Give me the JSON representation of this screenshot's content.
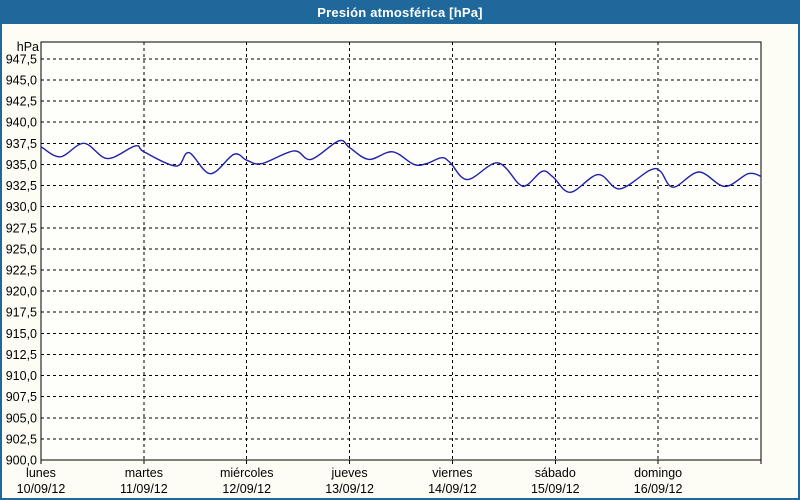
{
  "window": {
    "title": "Presión atmosférica [hPa]"
  },
  "colors": {
    "titlebar_bg": "#1e689c",
    "panel_border": "#1e689c",
    "panel_bg": "#fdfdf6",
    "plot_bg": "#fefefb",
    "grid": "#000000",
    "axis": "#000000",
    "line": "#2121a8",
    "title_text": "#ffffff"
  },
  "chart_data": {
    "type": "line",
    "title": "Presión atmosférica [hPa]",
    "y_unit": "hPa",
    "ylabel": "hPa",
    "xlabel": "",
    "ylim": [
      900.0,
      949.5
    ],
    "y_tick_step": 2.5,
    "grid": "dashed",
    "legend_position": "none",
    "y_tick_labels": [
      "947,5",
      "945,0",
      "942,5",
      "940,0",
      "937,5",
      "935,0",
      "932,5",
      "930,0",
      "927,5",
      "925,0",
      "922,5",
      "920,0",
      "917,5",
      "915,0",
      "912,5",
      "910,0",
      "907,5",
      "905,0",
      "902,5",
      "900,0"
    ],
    "y_tick_values": [
      947.5,
      945.0,
      942.5,
      940.0,
      937.5,
      935.0,
      932.5,
      930.0,
      927.5,
      925.0,
      922.5,
      920.0,
      917.5,
      915.0,
      912.5,
      910.0,
      907.5,
      905.0,
      902.5,
      900.0
    ],
    "x_days": [
      {
        "name": "lunes",
        "date": "10/09/12"
      },
      {
        "name": "martes",
        "date": "11/09/12"
      },
      {
        "name": "miércoles",
        "date": "12/09/12"
      },
      {
        "name": "jueves",
        "date": "13/09/12"
      },
      {
        "name": "viernes",
        "date": "14/09/12"
      },
      {
        "name": "sábado",
        "date": "15/09/12"
      },
      {
        "name": "domingo",
        "date": "16/09/12"
      }
    ],
    "x_range_hours": [
      0,
      168
    ],
    "series": [
      {
        "name": "Presión atmosférica",
        "color": "#2121a8",
        "points_h_hpa": [
          [
            0,
            937.1
          ],
          [
            4.5,
            935.9
          ],
          [
            10,
            937.5
          ],
          [
            15.5,
            935.7
          ],
          [
            22,
            937.2
          ],
          [
            24,
            936.5
          ],
          [
            31.5,
            934.8
          ],
          [
            34.5,
            936.4
          ],
          [
            39.5,
            933.9
          ],
          [
            45,
            936.2
          ],
          [
            48,
            935.5
          ],
          [
            51.5,
            935.1
          ],
          [
            59,
            936.6
          ],
          [
            63,
            935.6
          ],
          [
            69.5,
            937.8
          ],
          [
            72,
            937.0
          ],
          [
            76.5,
            935.6
          ],
          [
            82,
            936.5
          ],
          [
            87,
            935.0
          ],
          [
            90,
            935.1
          ],
          [
            93.5,
            935.8
          ],
          [
            95.5,
            935.2
          ],
          [
            99.5,
            933.2
          ],
          [
            106.5,
            935.2
          ],
          [
            111.5,
            932.7
          ],
          [
            113.5,
            932.6
          ],
          [
            117,
            934.2
          ],
          [
            119.5,
            933.5
          ],
          [
            123.5,
            931.7
          ],
          [
            130,
            933.8
          ],
          [
            135,
            932.1
          ],
          [
            142,
            934.3
          ],
          [
            144.5,
            934.2
          ],
          [
            147.5,
            932.3
          ],
          [
            153.5,
            934.1
          ],
          [
            159.5,
            932.4
          ],
          [
            165,
            933.9
          ],
          [
            168,
            933.6
          ]
        ]
      }
    ]
  }
}
